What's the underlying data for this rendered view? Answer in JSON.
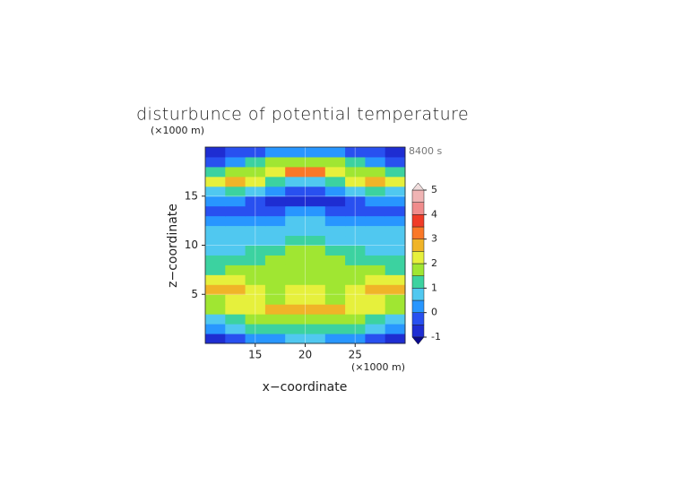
{
  "chart_data": {
    "type": "contour",
    "title": "disturbunce of potential temperature",
    "y_unit": "(×1000 m)",
    "x_unit": "(×1000 m)",
    "time_label": "8400 s",
    "xlabel": "x−coordinate",
    "ylabel": "z−coordinate",
    "xlim": [
      10,
      30
    ],
    "ylim": [
      0,
      20
    ],
    "xticks": [
      15,
      20,
      25
    ],
    "yticks": [
      5,
      10,
      15
    ],
    "grid": true,
    "x": [
      11,
      13,
      15,
      17,
      19,
      21,
      23,
      25,
      27,
      29
    ],
    "y": [
      0.5,
      1.5,
      2.5,
      3.5,
      4.5,
      5.5,
      6.5,
      7.5,
      8.5,
      9.5,
      10.5,
      11.5,
      12.5,
      13.5,
      14.5,
      15.5,
      16.5,
      17.5,
      18.5,
      19.5
    ],
    "z": [
      [
        -0.6,
        -0.3,
        0.2,
        0.4,
        0.5,
        0.5,
        0.4,
        0.2,
        -0.3,
        -0.6
      ],
      [
        0.3,
        0.8,
        1.2,
        1.3,
        1.3,
        1.3,
        1.3,
        1.2,
        0.8,
        0.3
      ],
      [
        0.8,
        1.2,
        1.7,
        1.8,
        1.8,
        1.8,
        1.8,
        1.7,
        1.2,
        0.8
      ],
      [
        1.5,
        2.0,
        2.4,
        2.6,
        2.7,
        2.7,
        2.6,
        2.4,
        2.0,
        1.5
      ],
      [
        1.8,
        2.2,
        2.0,
        1.9,
        2.3,
        2.3,
        1.9,
        2.0,
        2.2,
        1.8
      ],
      [
        2.6,
        2.7,
        2.0,
        1.7,
        2.2,
        2.2,
        1.7,
        2.0,
        2.7,
        2.6
      ],
      [
        2.2,
        2.0,
        1.6,
        1.8,
        1.9,
        1.9,
        1.8,
        1.6,
        2.0,
        2.2
      ],
      [
        1.4,
        1.5,
        1.7,
        1.6,
        1.8,
        1.8,
        1.6,
        1.7,
        1.5,
        1.4
      ],
      [
        1.0,
        1.2,
        1.4,
        1.6,
        1.8,
        1.8,
        1.6,
        1.4,
        1.2,
        1.0
      ],
      [
        0.8,
        0.8,
        1.0,
        1.2,
        1.6,
        1.6,
        1.2,
        1.0,
        0.8,
        0.8
      ],
      [
        0.6,
        0.6,
        0.7,
        0.8,
        1.4,
        1.4,
        0.8,
        0.7,
        0.6,
        0.6
      ],
      [
        0.7,
        0.7,
        0.6,
        0.6,
        0.9,
        0.9,
        0.6,
        0.6,
        0.7,
        0.7
      ],
      [
        0.4,
        0.3,
        0.3,
        0.4,
        0.6,
        0.6,
        0.4,
        0.3,
        0.3,
        0.4
      ],
      [
        -0.2,
        -0.3,
        -0.2,
        -0.1,
        0.0,
        0.0,
        -0.1,
        -0.2,
        -0.3,
        -0.2
      ],
      [
        0.3,
        0.2,
        -0.2,
        -0.6,
        -0.8,
        -0.8,
        -0.6,
        -0.2,
        0.2,
        0.3
      ],
      [
        0.8,
        1.0,
        0.6,
        0.0,
        -0.4,
        -0.4,
        0.0,
        0.6,
        1.0,
        0.8
      ],
      [
        2.0,
        2.8,
        2.2,
        1.2,
        0.6,
        0.6,
        1.2,
        2.2,
        2.8,
        2.0
      ],
      [
        1.2,
        1.6,
        1.8,
        2.4,
        3.0,
        3.0,
        2.4,
        1.8,
        1.6,
        1.2
      ],
      [
        -0.2,
        0.4,
        1.2,
        1.6,
        1.6,
        1.6,
        1.6,
        1.2,
        0.4,
        -0.2
      ],
      [
        -0.6,
        -0.5,
        -0.3,
        0.2,
        0.4,
        0.4,
        0.2,
        -0.3,
        -0.5,
        -0.6
      ]
    ],
    "levels": [
      -1,
      -0.5,
      0,
      0.5,
      1,
      1.5,
      2,
      2.5,
      3,
      3.5,
      4,
      4.5,
      5
    ],
    "colors": [
      "#0a0a8c",
      "#1e2dd2",
      "#2850f0",
      "#2896ff",
      "#50c8f0",
      "#3cd2a0",
      "#a0e632",
      "#e6f03c",
      "#f0b428",
      "#fa7828",
      "#f03c28",
      "#f08c8c",
      "#f0b4b4",
      "#f0dcdc"
    ],
    "colorbar_ticks": [
      -1,
      0,
      1,
      2,
      3,
      4,
      5
    ]
  }
}
